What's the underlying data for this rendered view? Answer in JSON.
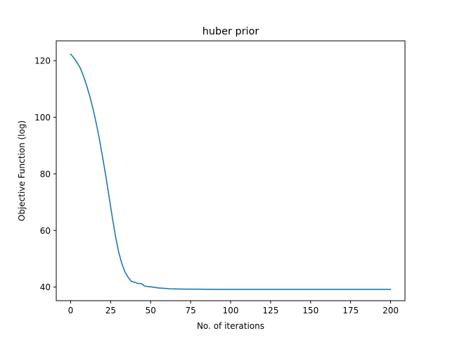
{
  "chart_data": {
    "type": "line",
    "title": "huber prior",
    "xlabel": "No. of iterations",
    "ylabel": "Objective Function (log)",
    "xlim": [
      -9,
      209
    ],
    "ylim": [
      35.2,
      127
    ],
    "xticks": [
      0,
      25,
      50,
      75,
      100,
      125,
      150,
      175,
      200
    ],
    "yticks": [
      40,
      60,
      80,
      100,
      120
    ],
    "grid": false,
    "series": [
      {
        "color": "#1f77b4",
        "x": [
          0,
          2,
          4,
          6,
          8,
          10,
          12,
          14,
          16,
          18,
          20,
          22,
          24,
          26,
          28,
          30,
          32,
          34,
          36,
          38,
          40,
          42,
          44,
          45,
          46,
          47,
          48,
          50,
          55,
          60,
          62,
          65,
          70,
          80,
          90,
          100,
          120,
          140,
          160,
          180,
          200
        ],
        "y": [
          122.3,
          121.0,
          119.3,
          117.4,
          114.6,
          111.2,
          107.4,
          102.9,
          97.9,
          92.2,
          85.8,
          79.2,
          72.0,
          64.8,
          58.1,
          52.4,
          48.3,
          45.3,
          43.4,
          42.0,
          41.7,
          41.3,
          41.2,
          41.0,
          40.4,
          40.3,
          40.2,
          40.1,
          39.7,
          39.5,
          39.4,
          39.35,
          39.3,
          39.25,
          39.2,
          39.2,
          39.2,
          39.2,
          39.2,
          39.2,
          39.2
        ]
      }
    ]
  }
}
